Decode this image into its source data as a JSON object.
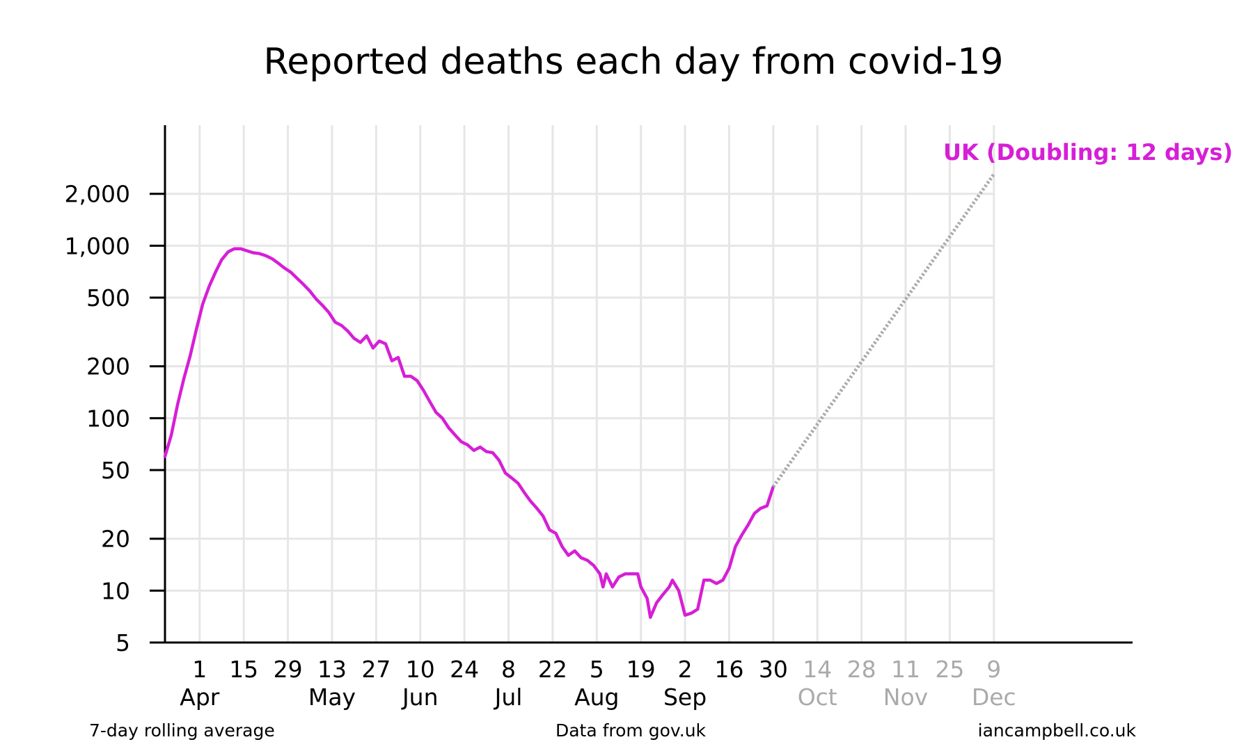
{
  "chart_data": {
    "type": "line",
    "title": "Reported deaths each day from covid-19",
    "xlabel": "",
    "ylabel": "",
    "y_scale": "log",
    "ylim": [
      5,
      5000
    ],
    "y_ticks": [
      5,
      10,
      20,
      50,
      100,
      200,
      500,
      1000,
      2000
    ],
    "y_tick_labels": [
      "5",
      "10",
      "20",
      "50",
      "100",
      "200",
      "500",
      "1,000",
      "2,000"
    ],
    "x_ticks": [
      {
        "date": "2020-04-01",
        "day": "1",
        "month": "Apr",
        "projected": false
      },
      {
        "date": "2020-04-15",
        "day": "15",
        "month": "",
        "projected": false
      },
      {
        "date": "2020-04-29",
        "day": "29",
        "month": "",
        "projected": false
      },
      {
        "date": "2020-05-13",
        "day": "13",
        "month": "May",
        "projected": false
      },
      {
        "date": "2020-05-27",
        "day": "27",
        "month": "",
        "projected": false
      },
      {
        "date": "2020-06-10",
        "day": "10",
        "month": "Jun",
        "projected": false
      },
      {
        "date": "2020-06-24",
        "day": "24",
        "month": "",
        "projected": false
      },
      {
        "date": "2020-07-08",
        "day": "8",
        "month": "Jul",
        "projected": false
      },
      {
        "date": "2020-07-22",
        "day": "22",
        "month": "",
        "projected": false
      },
      {
        "date": "2020-08-05",
        "day": "5",
        "month": "Aug",
        "projected": false
      },
      {
        "date": "2020-08-19",
        "day": "19",
        "month": "",
        "projected": false
      },
      {
        "date": "2020-09-02",
        "day": "2",
        "month": "Sep",
        "projected": false
      },
      {
        "date": "2020-09-16",
        "day": "16",
        "month": "",
        "projected": false
      },
      {
        "date": "2020-09-30",
        "day": "30",
        "month": "",
        "projected": false
      },
      {
        "date": "2020-10-14",
        "day": "14",
        "month": "Oct",
        "projected": true
      },
      {
        "date": "2020-10-28",
        "day": "28",
        "month": "",
        "projected": true
      },
      {
        "date": "2020-11-11",
        "day": "11",
        "month": "Nov",
        "projected": true
      },
      {
        "date": "2020-11-25",
        "day": "25",
        "month": "",
        "projected": true
      },
      {
        "date": "2020-12-09",
        "day": "9",
        "month": "Dec",
        "projected": true
      }
    ],
    "xlim": [
      "2020-03-21",
      "2021-01-22"
    ],
    "grid": true,
    "series": [
      {
        "name": "UK",
        "label": "UK (Doubling: 12 days)",
        "color": "#d61fd6",
        "style": "solid",
        "points": [
          [
            "2020-03-21",
            60
          ],
          [
            "2020-03-23",
            80
          ],
          [
            "2020-03-25",
            120
          ],
          [
            "2020-03-27",
            170
          ],
          [
            "2020-03-29",
            230
          ],
          [
            "2020-03-31",
            330
          ],
          [
            "2020-04-02",
            460
          ],
          [
            "2020-04-04",
            580
          ],
          [
            "2020-04-06",
            700
          ],
          [
            "2020-04-08",
            830
          ],
          [
            "2020-04-10",
            920
          ],
          [
            "2020-04-12",
            960
          ],
          [
            "2020-04-14",
            960
          ],
          [
            "2020-04-16",
            935
          ],
          [
            "2020-04-18",
            910
          ],
          [
            "2020-04-20",
            900
          ],
          [
            "2020-04-22",
            875
          ],
          [
            "2020-04-24",
            840
          ],
          [
            "2020-04-26",
            790
          ],
          [
            "2020-04-28",
            740
          ],
          [
            "2020-04-30",
            700
          ],
          [
            "2020-05-02",
            645
          ],
          [
            "2020-05-04",
            595
          ],
          [
            "2020-05-06",
            545
          ],
          [
            "2020-05-08",
            490
          ],
          [
            "2020-05-10",
            450
          ],
          [
            "2020-05-12",
            410
          ],
          [
            "2020-05-14",
            360
          ],
          [
            "2020-05-16",
            345
          ],
          [
            "2020-05-18",
            320
          ],
          [
            "2020-05-20",
            290
          ],
          [
            "2020-05-22",
            275
          ],
          [
            "2020-05-24",
            300
          ],
          [
            "2020-05-26",
            255
          ],
          [
            "2020-05-28",
            280
          ],
          [
            "2020-05-30",
            270
          ],
          [
            "2020-06-01",
            215
          ],
          [
            "2020-06-03",
            225
          ],
          [
            "2020-06-05",
            175
          ],
          [
            "2020-06-07",
            175
          ],
          [
            "2020-06-09",
            165
          ],
          [
            "2020-06-11",
            145
          ],
          [
            "2020-06-13",
            125
          ],
          [
            "2020-06-15",
            108
          ],
          [
            "2020-06-17",
            100
          ],
          [
            "2020-06-19",
            88
          ],
          [
            "2020-06-21",
            80
          ],
          [
            "2020-06-23",
            73
          ],
          [
            "2020-06-25",
            70
          ],
          [
            "2020-06-27",
            65
          ],
          [
            "2020-06-29",
            68
          ],
          [
            "2020-07-01",
            64
          ],
          [
            "2020-07-03",
            63
          ],
          [
            "2020-07-05",
            57
          ],
          [
            "2020-07-07",
            48
          ],
          [
            "2020-07-09",
            45
          ],
          [
            "2020-07-11",
            42
          ],
          [
            "2020-07-13",
            37
          ],
          [
            "2020-07-15",
            33
          ],
          [
            "2020-07-17",
            30
          ],
          [
            "2020-07-19",
            27
          ],
          [
            "2020-07-21",
            22.5
          ],
          [
            "2020-07-23",
            21.5
          ],
          [
            "2020-07-25",
            18
          ],
          [
            "2020-07-27",
            16
          ],
          [
            "2020-07-29",
            17
          ],
          [
            "2020-07-31",
            15.5
          ],
          [
            "2020-08-02",
            15
          ],
          [
            "2020-08-04",
            14
          ],
          [
            "2020-08-06",
            12.5
          ],
          [
            "2020-08-07",
            10.5
          ],
          [
            "2020-08-08",
            12.5
          ],
          [
            "2020-08-10",
            10.5
          ],
          [
            "2020-08-12",
            12
          ],
          [
            "2020-08-14",
            12.5
          ],
          [
            "2020-08-16",
            12.5
          ],
          [
            "2020-08-18",
            12.5
          ],
          [
            "2020-08-19",
            10.5
          ],
          [
            "2020-08-21",
            9
          ],
          [
            "2020-08-22",
            7
          ],
          [
            "2020-08-24",
            8.5
          ],
          [
            "2020-08-26",
            9.5
          ],
          [
            "2020-08-28",
            10.5
          ],
          [
            "2020-08-29",
            11.5
          ],
          [
            "2020-08-31",
            10
          ],
          [
            "2020-09-02",
            7.2
          ],
          [
            "2020-09-04",
            7.4
          ],
          [
            "2020-09-06",
            7.8
          ],
          [
            "2020-09-08",
            11.5
          ],
          [
            "2020-09-10",
            11.5
          ],
          [
            "2020-09-12",
            11
          ],
          [
            "2020-09-14",
            11.5
          ],
          [
            "2020-09-16",
            13.5
          ],
          [
            "2020-09-18",
            18
          ],
          [
            "2020-09-20",
            21
          ],
          [
            "2020-09-22",
            24
          ],
          [
            "2020-09-24",
            28
          ],
          [
            "2020-09-26",
            30
          ],
          [
            "2020-09-28",
            31
          ],
          [
            "2020-09-30",
            40
          ]
        ]
      },
      {
        "name": "UK projection",
        "color": "#aaaaaa",
        "style": "dotted",
        "points": [
          [
            "2020-09-30",
            40
          ],
          [
            "2020-12-09",
            2600
          ]
        ]
      }
    ],
    "footer": {
      "left": "7-day rolling average",
      "center": "Data from gov.uk",
      "right": "iancampbell.co.uk"
    },
    "colors": {
      "actual_tick": "#000000",
      "projected_tick": "#aaaaaa",
      "grid": "#e6e6e6"
    }
  }
}
